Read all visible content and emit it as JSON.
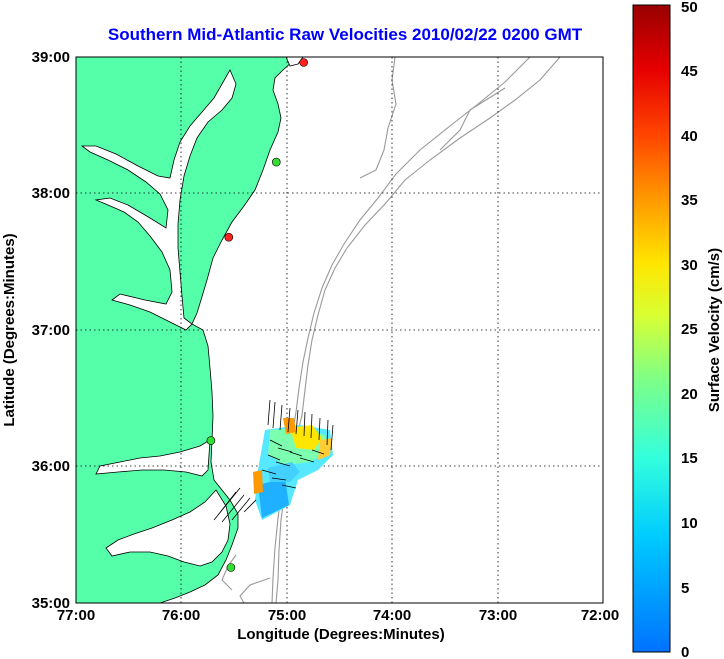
{
  "title": "Southern Mid-Atlantic Raw Velocities 2010/02/22 0200 GMT",
  "x_axis": {
    "label": "Longitude (Degrees:Minutes)",
    "ticks": [
      {
        "value": -77,
        "label": "77:00"
      },
      {
        "value": -76,
        "label": "76:00"
      },
      {
        "value": -75,
        "label": "75:00"
      },
      {
        "value": -74,
        "label": "74:00"
      },
      {
        "value": -73,
        "label": "73:00"
      },
      {
        "value": -72,
        "label": "72:00"
      }
    ],
    "range": [
      -77,
      -72
    ]
  },
  "y_axis": {
    "label": "Latitude (Degrees:Minutes)",
    "ticks": [
      {
        "value": 35,
        "label": "35:00"
      },
      {
        "value": 36,
        "label": "36:00"
      },
      {
        "value": 37,
        "label": "37:00"
      },
      {
        "value": 38,
        "label": "38:00"
      },
      {
        "value": 39,
        "label": "39:00"
      }
    ],
    "range": [
      35,
      39
    ]
  },
  "colorbar": {
    "label": "Surface Velocity (cm/s)",
    "min": 0,
    "max": 50,
    "ticks": [
      "0",
      "5",
      "10",
      "15",
      "20",
      "25",
      "30",
      "35",
      "40",
      "45",
      "50"
    ]
  },
  "colors": {
    "land": "#55ffaa",
    "ocean": "#ffffff",
    "bathymetry": "#999999",
    "grid": "#000000",
    "title": "#0000ff"
  },
  "grid": "dotted",
  "stations": [
    {
      "lon": -74.84,
      "lat": 38.96,
      "color": "#ff2020"
    },
    {
      "lon": -75.1,
      "lat": 38.23,
      "color": "#33dd33"
    },
    {
      "lon": -75.55,
      "lat": 37.68,
      "color": "#ff2020"
    },
    {
      "lon": -75.72,
      "lat": 36.19,
      "color": "#33dd33"
    },
    {
      "lon": -75.53,
      "lat": 35.26,
      "color": "#33dd33"
    }
  ]
}
